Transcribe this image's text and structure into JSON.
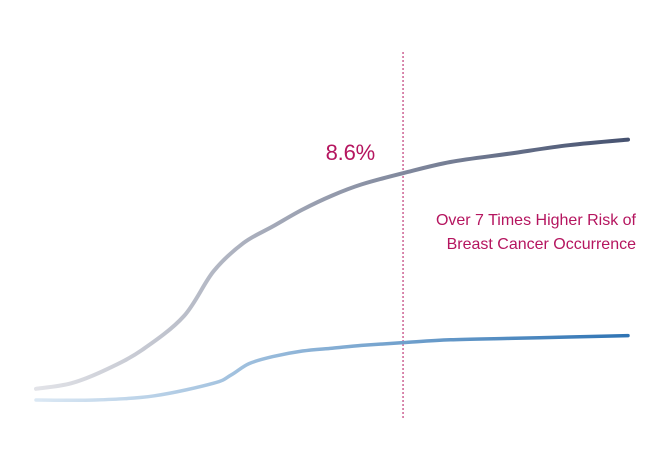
{
  "chart_data": {
    "type": "line",
    "title": "",
    "xlabel": "",
    "ylabel": "",
    "grid": false,
    "legend": "none",
    "xlim": [
      0,
      100
    ],
    "ylim": [
      0,
      10
    ],
    "series": [
      {
        "x": [
          0,
          6,
          12,
          18,
          25,
          30,
          35,
          40,
          45,
          50,
          55,
          62,
          70,
          80,
          90,
          100
        ],
        "y": [
          0.4,
          0.6,
          1.1,
          1.8,
          3.0,
          4.6,
          5.6,
          6.2,
          6.8,
          7.3,
          7.7,
          8.1,
          8.5,
          8.8,
          9.1,
          9.3
        ],
        "color_start": "#e2e3e8",
        "color_end": "#465270"
      },
      {
        "x": [
          0,
          10,
          20,
          30,
          33,
          36,
          40,
          45,
          50,
          55,
          62,
          70,
          80,
          90,
          100
        ],
        "y": [
          0.0,
          0.0,
          0.15,
          0.6,
          0.9,
          1.3,
          1.55,
          1.75,
          1.85,
          1.95,
          2.05,
          2.15,
          2.2,
          2.25,
          2.3
        ],
        "color_start": "#dbe8f4",
        "color_end": "#2f74b4"
      }
    ],
    "marker": {
      "x": 62,
      "color": "#b5155f"
    },
    "annotations": {
      "value": "8.6%",
      "note_line1": "Over 7 Times Higher Risk of",
      "note_line2": "Breast Cancer Occurrence",
      "color": "#b5155f"
    }
  }
}
